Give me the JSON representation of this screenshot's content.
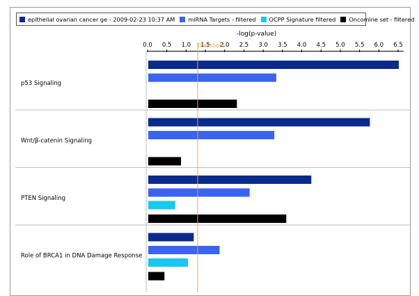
{
  "chart_data": {
    "type": "bar",
    "orientation": "horizontal",
    "title": "",
    "xlabel": "-log(p-value)",
    "xlim": [
      0,
      6.5
    ],
    "xticks": [
      "0.0",
      "0.5",
      "1.0",
      "1.5",
      "2.0",
      "2.5",
      "3.0",
      "3.5",
      "4.0",
      "4.5",
      "5.0",
      "5.5",
      "6.0",
      "6.5"
    ],
    "threshold": {
      "label": "Threshold",
      "value": 1.3
    },
    "legend_position": "top",
    "categories": [
      "p53 Signaling",
      "Wnt/β-catenin Signaling",
      "PTEN Signaling",
      "Role of BRCA1 in DNA Damage Response"
    ],
    "series": [
      {
        "name": "epithelial ovarian cancer ge - 2009-02-23 10:37 AM",
        "color": "#0a2a8c",
        "values": [
          6.5,
          5.75,
          4.23,
          1.18
        ]
      },
      {
        "name": "miRNA Targets - filtered",
        "color": "#3a63f0",
        "values": [
          3.32,
          3.27,
          2.63,
          1.85
        ]
      },
      {
        "name": "OCPP Signature filtered",
        "color": "#18c8f0",
        "values": [
          0,
          0,
          0.7,
          1.03
        ]
      },
      {
        "name": "Oncomine set - filtered",
        "color": "#000000",
        "values": [
          2.3,
          0.85,
          3.58,
          0.42
        ]
      }
    ]
  },
  "colors": {
    "gridline": "#bdbdbd",
    "threshold": "#e8a444",
    "axis": "#000000"
  }
}
